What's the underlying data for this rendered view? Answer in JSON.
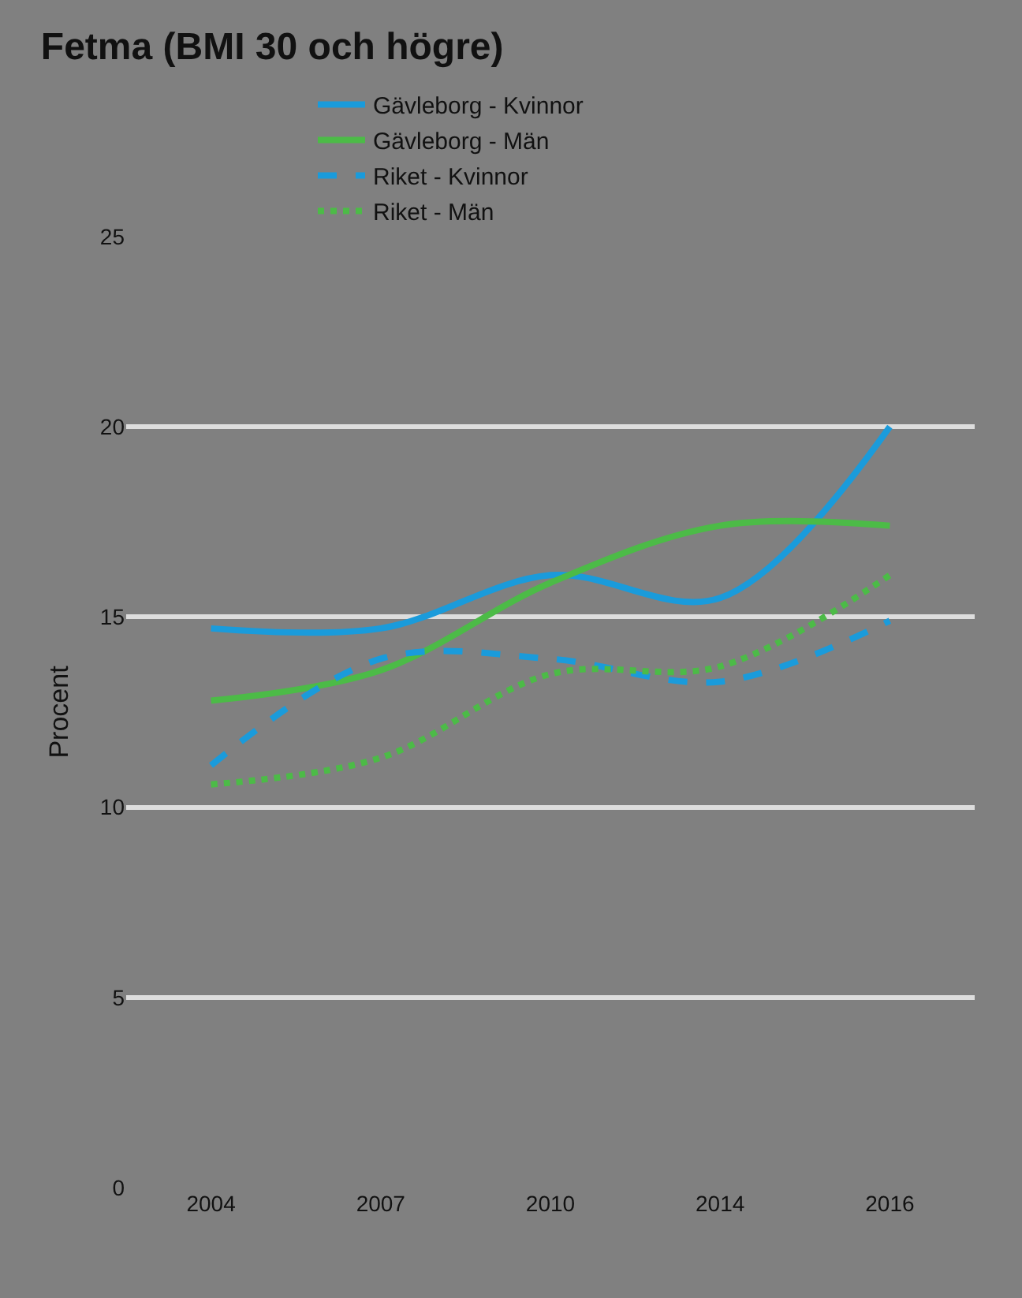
{
  "chart_data": {
    "type": "line",
    "title": "Fetma (BMI 30 och högre)",
    "ylabel": "Procent",
    "categories": [
      "2004",
      "2007",
      "2010",
      "2014",
      "2016"
    ],
    "series": [
      {
        "name": "Gävleborg - Kvinnor",
        "color": "#1a9bdb",
        "line_style": "solid",
        "values": [
          14.7,
          14.7,
          16.1,
          15.5,
          20.0
        ]
      },
      {
        "name": "Gävleborg - Män",
        "color": "#4cbb47",
        "line_style": "solid",
        "values": [
          12.8,
          13.6,
          15.9,
          17.4,
          17.4
        ]
      },
      {
        "name": "Riket - Kvinnor",
        "color": "#1a9bdb",
        "line_style": "dashed",
        "values": [
          11.1,
          13.9,
          13.9,
          13.3,
          14.9
        ]
      },
      {
        "name": "Riket - Män",
        "color": "#4cbb47",
        "line_style": "dotted",
        "values": [
          10.6,
          11.3,
          13.5,
          13.7,
          16.1
        ]
      }
    ],
    "ylim": [
      0,
      25
    ],
    "yticks": [
      0,
      5,
      10,
      15,
      20,
      25
    ],
    "grid": "y",
    "legend": "top",
    "marker": "none"
  }
}
